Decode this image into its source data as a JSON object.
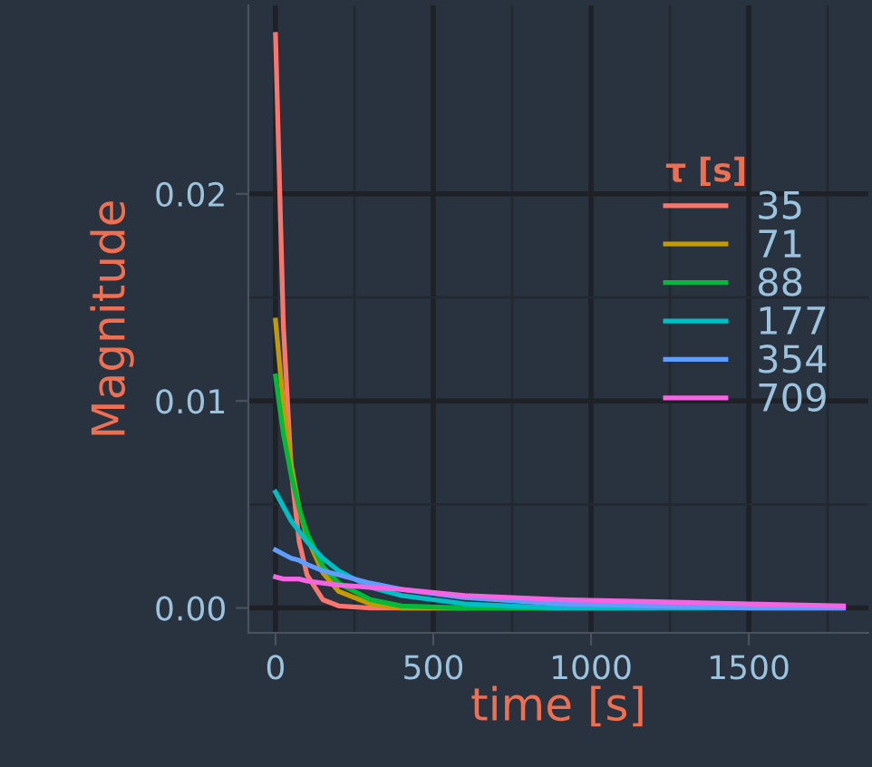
{
  "chart_data": {
    "type": "line",
    "xlabel": "time [s]",
    "ylabel": "Magnitude",
    "legend_title": "τ [s]",
    "x": [
      0,
      25,
      50,
      75,
      100,
      150,
      200,
      300,
      400,
      600,
      900,
      1200,
      1500,
      1800
    ],
    "series": [
      {
        "name": "35",
        "color": "#f8766d",
        "values": [
          0.0277,
          0.0136,
          0.0066,
          0.0032,
          0.0016,
          0.0004,
          0.0001,
          0.0,
          0.0,
          0.0,
          null,
          null,
          null,
          null
        ]
      },
      {
        "name": "71",
        "color": "#c49a00",
        "values": [
          0.0139,
          0.0098,
          0.0069,
          0.0048,
          0.0034,
          0.0017,
          0.0008,
          0.0002,
          0.0,
          0.0,
          0.0,
          null,
          null,
          null
        ]
      },
      {
        "name": "88",
        "color": "#00ba38",
        "values": [
          0.0112,
          0.0084,
          0.0064,
          0.0048,
          0.0036,
          0.002,
          0.0012,
          0.0004,
          0.0001,
          0.0,
          0.0,
          0.0,
          null,
          null
        ]
      },
      {
        "name": "177",
        "color": "#00bfc4",
        "values": [
          0.0056,
          0.0049,
          0.0042,
          0.0037,
          0.0032,
          0.0024,
          0.0018,
          0.001,
          0.0006,
          0.0002,
          0.0,
          0.0,
          0.0,
          0.0
        ]
      },
      {
        "name": "354",
        "color": "#619cff",
        "values": [
          0.0028,
          0.0026,
          0.0024,
          0.0023,
          0.0021,
          0.0018,
          0.0016,
          0.0012,
          0.0009,
          0.0005,
          0.0002,
          0.0001,
          0.0,
          0.0
        ]
      },
      {
        "name": "709",
        "color": "#f564e3",
        "values": [
          0.0015,
          0.0014,
          0.0014,
          0.0014,
          0.0013,
          0.0012,
          0.0011,
          0.001,
          0.0009,
          0.0006,
          0.0004,
          0.0003,
          0.0002,
          0.0001
        ]
      }
    ],
    "xlim": [
      -86,
      1879
    ],
    "ylim": [
      -0.0012,
      0.0291
    ],
    "xticks": [
      0,
      500,
      1000,
      1500
    ],
    "yticks": [
      {
        "value": 0,
        "label": "0.00"
      },
      {
        "value": 0.01,
        "label": "0.01"
      },
      {
        "value": 0.02,
        "label": "0.02"
      }
    ],
    "grid": true,
    "legend": "right",
    "marker": "none",
    "line_style": "solid"
  }
}
